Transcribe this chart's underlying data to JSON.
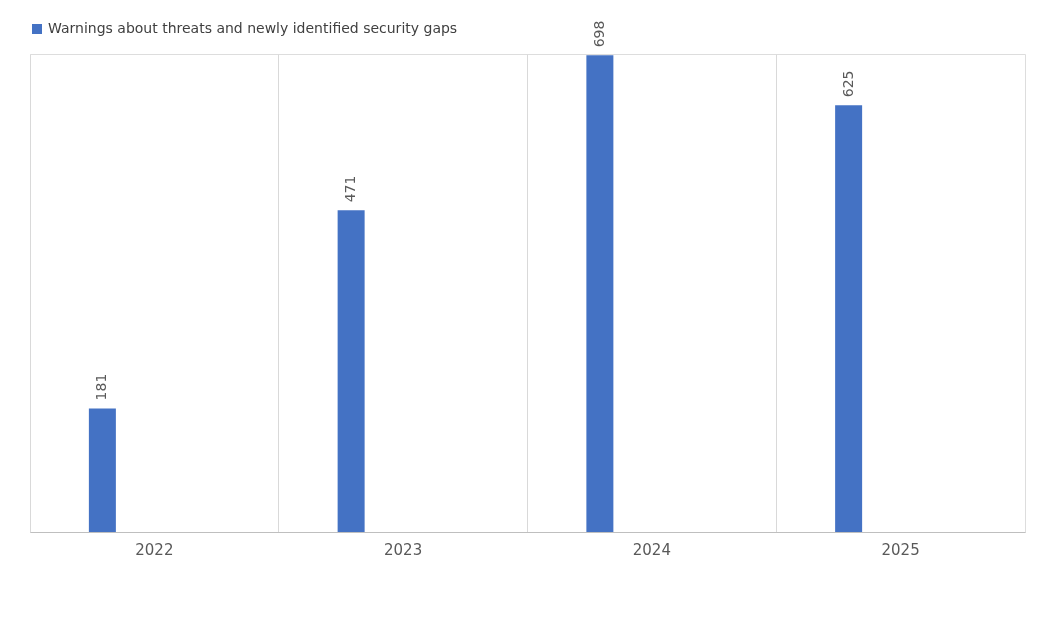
{
  "chart_data": {
    "type": "bar",
    "categories": [
      "2022",
      "2023",
      "2024",
      "2025"
    ],
    "series": [
      {
        "name": "Warnings about threats and newly identified security gaps",
        "color": "#4472c4",
        "values": [
          181,
          471,
          698,
          625
        ]
      }
    ],
    "data_labels": true,
    "grid": "x",
    "legend": "top",
    "tick_labels": "x"
  }
}
